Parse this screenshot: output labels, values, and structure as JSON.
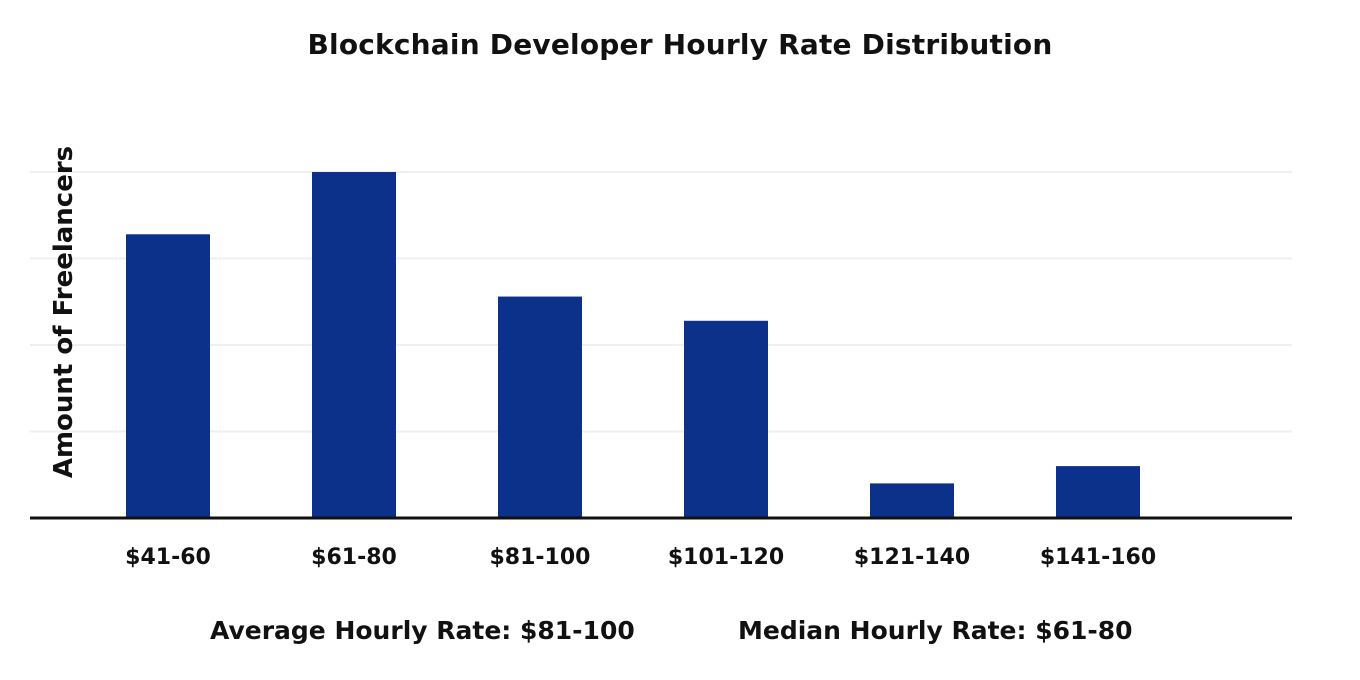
{
  "chart_data": {
    "type": "bar",
    "title": "Blockchain Developer Hourly Rate Distribution",
    "xlabel": "",
    "ylabel": "Amount of Freelancers",
    "categories": [
      "$41-60",
      "$61-80",
      "$81-100",
      "$101-120",
      "$121-140",
      "$141-160"
    ],
    "values": [
      82,
      100,
      64,
      57,
      10,
      15
    ],
    "ylim": [
      0,
      100
    ],
    "grid": true,
    "y_tick_labels_shown": false,
    "bar_color": "#0b318a",
    "grid_color": "#efefef",
    "axis_color": "#111111"
  },
  "footer": {
    "average": "Average Hourly Rate: $81-100",
    "median": "Median Hourly Rate: $61-80"
  }
}
